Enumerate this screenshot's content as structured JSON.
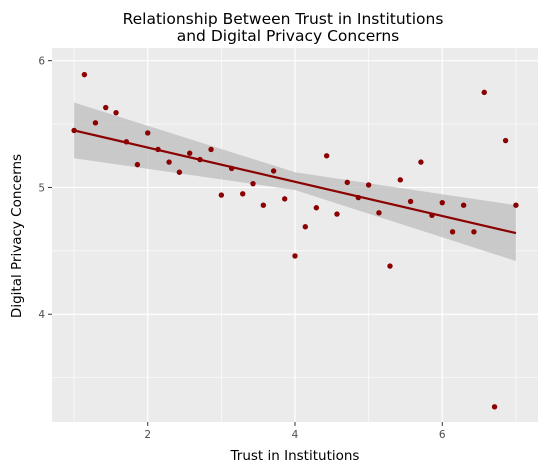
{
  "chart_data": {
    "type": "scatter",
    "title_lines": [
      "Relationship Between Trust in Institutions",
      "and Digital Privacy Concerns"
    ],
    "xlabel": "Trust in Institutions",
    "ylabel": "Digital Privacy Concerns",
    "xlim": [
      0.7,
      7.3
    ],
    "ylim": [
      3.15,
      6.1
    ],
    "x_ticks": [
      2,
      4,
      6
    ],
    "y_ticks": [
      4,
      5,
      6
    ],
    "x_tick_labels": [
      "2",
      "4",
      "6"
    ],
    "y_tick_labels": [
      "4",
      "5",
      "6"
    ],
    "grid": true,
    "legend": "none",
    "colors": {
      "panel": "#ebebeb",
      "grid_major": "#ffffff",
      "points": "#8b0000",
      "fit_line": "#8b0000",
      "ribbon": "#bdbdbd"
    },
    "points": [
      {
        "x": 1.0,
        "y": 5.45
      },
      {
        "x": 1.14,
        "y": 5.89
      },
      {
        "x": 1.29,
        "y": 5.51
      },
      {
        "x": 1.43,
        "y": 5.63
      },
      {
        "x": 1.57,
        "y": 5.59
      },
      {
        "x": 1.71,
        "y": 5.36
      },
      {
        "x": 1.86,
        "y": 5.18
      },
      {
        "x": 2.0,
        "y": 5.43
      },
      {
        "x": 2.14,
        "y": 5.3
      },
      {
        "x": 2.29,
        "y": 5.2
      },
      {
        "x": 2.43,
        "y": 5.12
      },
      {
        "x": 2.57,
        "y": 5.27
      },
      {
        "x": 2.71,
        "y": 5.22
      },
      {
        "x": 2.86,
        "y": 5.3
      },
      {
        "x": 3.0,
        "y": 4.94
      },
      {
        "x": 3.14,
        "y": 5.15
      },
      {
        "x": 3.29,
        "y": 4.95
      },
      {
        "x": 3.43,
        "y": 5.03
      },
      {
        "x": 3.57,
        "y": 4.86
      },
      {
        "x": 3.71,
        "y": 5.13
      },
      {
        "x": 3.86,
        "y": 4.91
      },
      {
        "x": 4.0,
        "y": 4.46
      },
      {
        "x": 4.14,
        "y": 4.69
      },
      {
        "x": 4.29,
        "y": 4.84
      },
      {
        "x": 4.43,
        "y": 5.25
      },
      {
        "x": 4.57,
        "y": 4.79
      },
      {
        "x": 4.71,
        "y": 5.04
      },
      {
        "x": 4.86,
        "y": 4.92
      },
      {
        "x": 5.0,
        "y": 5.02
      },
      {
        "x": 5.14,
        "y": 4.8
      },
      {
        "x": 5.29,
        "y": 4.38
      },
      {
        "x": 5.43,
        "y": 5.06
      },
      {
        "x": 5.57,
        "y": 4.89
      },
      {
        "x": 5.71,
        "y": 5.2
      },
      {
        "x": 5.86,
        "y": 4.78
      },
      {
        "x": 6.0,
        "y": 4.88
      },
      {
        "x": 6.14,
        "y": 4.65
      },
      {
        "x": 6.29,
        "y": 4.86
      },
      {
        "x": 6.43,
        "y": 4.65
      },
      {
        "x": 6.57,
        "y": 5.75
      },
      {
        "x": 6.71,
        "y": 3.27
      },
      {
        "x": 6.86,
        "y": 5.37
      },
      {
        "x": 7.0,
        "y": 4.86
      }
    ],
    "fit": {
      "method": "linear",
      "x": [
        1.0,
        7.0
      ],
      "y": [
        5.45,
        4.64
      ]
    },
    "ribbon": {
      "x": [
        1.0,
        4.0,
        7.0
      ],
      "lower": [
        5.23,
        4.98,
        4.42
      ],
      "upper": [
        5.67,
        5.12,
        4.86
      ]
    }
  }
}
